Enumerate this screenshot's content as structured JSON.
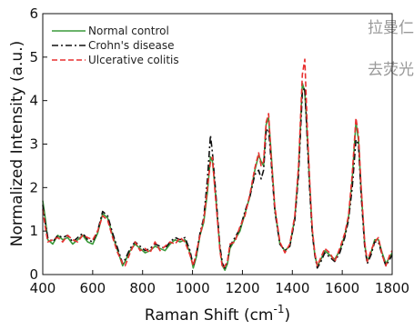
{
  "background_text": [
    "拉曼仁",
    "去荧光"
  ],
  "chart_data": {
    "type": "line",
    "xlabel": "Raman Shift (cm",
    "xlabel_superscript": "-1",
    "xlabel_suffix": ")",
    "ylabel": "Normalized Intensity (a.u.)",
    "xlim": [
      400,
      1800
    ],
    "ylim": [
      0,
      6
    ],
    "xticks": [
      400,
      600,
      800,
      1000,
      1200,
      1400,
      1600,
      1800
    ],
    "yticks": [
      0,
      1,
      2,
      3,
      4,
      5,
      6
    ],
    "grid": false,
    "legend_position": "top-left",
    "series": [
      {
        "name": "Normal control",
        "color": "#3a9a3a",
        "dash": "solid",
        "points": [
          [
            400,
            1.7
          ],
          [
            410,
            1.3
          ],
          [
            420,
            0.8
          ],
          [
            440,
            0.7
          ],
          [
            460,
            0.9
          ],
          [
            480,
            0.8
          ],
          [
            500,
            0.85
          ],
          [
            520,
            0.7
          ],
          [
            540,
            0.8
          ],
          [
            560,
            0.9
          ],
          [
            580,
            0.75
          ],
          [
            600,
            0.7
          ],
          [
            620,
            0.95
          ],
          [
            640,
            1.4
          ],
          [
            660,
            1.3
          ],
          [
            680,
            0.9
          ],
          [
            700,
            0.55
          ],
          [
            720,
            0.2
          ],
          [
            730,
            0.3
          ],
          [
            750,
            0.55
          ],
          [
            770,
            0.7
          ],
          [
            790,
            0.6
          ],
          [
            810,
            0.5
          ],
          [
            830,
            0.55
          ],
          [
            850,
            0.65
          ],
          [
            870,
            0.6
          ],
          [
            890,
            0.55
          ],
          [
            910,
            0.7
          ],
          [
            930,
            0.8
          ],
          [
            950,
            0.75
          ],
          [
            970,
            0.8
          ],
          [
            990,
            0.5
          ],
          [
            1003,
            0.15
          ],
          [
            1015,
            0.4
          ],
          [
            1030,
            0.9
          ],
          [
            1045,
            1.2
          ],
          [
            1060,
            1.9
          ],
          [
            1072,
            2.7
          ],
          [
            1080,
            2.6
          ],
          [
            1090,
            2.0
          ],
          [
            1100,
            1.3
          ],
          [
            1110,
            0.6
          ],
          [
            1120,
            0.2
          ],
          [
            1130,
            0.1
          ],
          [
            1140,
            0.25
          ],
          [
            1150,
            0.6
          ],
          [
            1170,
            0.8
          ],
          [
            1190,
            1.0
          ],
          [
            1210,
            1.4
          ],
          [
            1230,
            1.8
          ],
          [
            1250,
            2.4
          ],
          [
            1265,
            2.75
          ],
          [
            1275,
            2.6
          ],
          [
            1285,
            2.5
          ],
          [
            1295,
            3.45
          ],
          [
            1305,
            3.6
          ],
          [
            1315,
            2.8
          ],
          [
            1330,
            1.5
          ],
          [
            1350,
            0.7
          ],
          [
            1370,
            0.55
          ],
          [
            1390,
            0.65
          ],
          [
            1410,
            1.3
          ],
          [
            1425,
            2.4
          ],
          [
            1440,
            4.4
          ],
          [
            1450,
            4.2
          ],
          [
            1460,
            3.2
          ],
          [
            1470,
            2.0
          ],
          [
            1480,
            1.0
          ],
          [
            1490,
            0.45
          ],
          [
            1500,
            0.2
          ],
          [
            1515,
            0.35
          ],
          [
            1530,
            0.55
          ],
          [
            1550,
            0.45
          ],
          [
            1570,
            0.35
          ],
          [
            1590,
            0.55
          ],
          [
            1610,
            0.9
          ],
          [
            1625,
            1.3
          ],
          [
            1640,
            2.2
          ],
          [
            1655,
            3.5
          ],
          [
            1665,
            3.1
          ],
          [
            1675,
            2.0
          ],
          [
            1690,
            0.7
          ],
          [
            1700,
            0.3
          ],
          [
            1715,
            0.5
          ],
          [
            1730,
            0.8
          ],
          [
            1745,
            0.8
          ],
          [
            1760,
            0.5
          ],
          [
            1775,
            0.25
          ],
          [
            1790,
            0.4
          ],
          [
            1800,
            0.5
          ]
        ]
      },
      {
        "name": "Crohn's disease",
        "color": "#111111",
        "dash": "dashdot",
        "points": [
          [
            400,
            1.6
          ],
          [
            410,
            1.2
          ],
          [
            420,
            0.85
          ],
          [
            440,
            0.75
          ],
          [
            460,
            0.9
          ],
          [
            480,
            0.85
          ],
          [
            500,
            0.9
          ],
          [
            520,
            0.75
          ],
          [
            540,
            0.85
          ],
          [
            560,
            0.95
          ],
          [
            580,
            0.8
          ],
          [
            600,
            0.75
          ],
          [
            620,
            1.0
          ],
          [
            640,
            1.45
          ],
          [
            660,
            1.35
          ],
          [
            680,
            0.95
          ],
          [
            700,
            0.6
          ],
          [
            720,
            0.25
          ],
          [
            730,
            0.35
          ],
          [
            750,
            0.6
          ],
          [
            770,
            0.75
          ],
          [
            790,
            0.65
          ],
          [
            810,
            0.55
          ],
          [
            830,
            0.6
          ],
          [
            850,
            0.7
          ],
          [
            870,
            0.65
          ],
          [
            890,
            0.6
          ],
          [
            910,
            0.75
          ],
          [
            930,
            0.85
          ],
          [
            950,
            0.8
          ],
          [
            970,
            0.85
          ],
          [
            990,
            0.55
          ],
          [
            1003,
            0.2
          ],
          [
            1015,
            0.45
          ],
          [
            1030,
            0.95
          ],
          [
            1045,
            1.3
          ],
          [
            1060,
            2.2
          ],
          [
            1072,
            3.2
          ],
          [
            1080,
            2.8
          ],
          [
            1090,
            2.1
          ],
          [
            1100,
            1.35
          ],
          [
            1110,
            0.65
          ],
          [
            1120,
            0.25
          ],
          [
            1130,
            0.15
          ],
          [
            1140,
            0.3
          ],
          [
            1150,
            0.65
          ],
          [
            1170,
            0.85
          ],
          [
            1190,
            1.05
          ],
          [
            1210,
            1.45
          ],
          [
            1230,
            1.8
          ],
          [
            1250,
            2.3
          ],
          [
            1265,
            2.4
          ],
          [
            1275,
            2.2
          ],
          [
            1285,
            2.4
          ],
          [
            1295,
            3.3
          ],
          [
            1305,
            3.35
          ],
          [
            1315,
            2.6
          ],
          [
            1330,
            1.45
          ],
          [
            1350,
            0.7
          ],
          [
            1370,
            0.55
          ],
          [
            1390,
            0.65
          ],
          [
            1410,
            1.25
          ],
          [
            1425,
            2.3
          ],
          [
            1440,
            4.2
          ],
          [
            1450,
            4.3
          ],
          [
            1460,
            3.1
          ],
          [
            1470,
            1.9
          ],
          [
            1480,
            0.95
          ],
          [
            1490,
            0.45
          ],
          [
            1500,
            0.15
          ],
          [
            1515,
            0.3
          ],
          [
            1530,
            0.5
          ],
          [
            1550,
            0.4
          ],
          [
            1570,
            0.3
          ],
          [
            1590,
            0.5
          ],
          [
            1610,
            0.85
          ],
          [
            1625,
            1.25
          ],
          [
            1640,
            2.0
          ],
          [
            1655,
            3.1
          ],
          [
            1665,
            3.0
          ],
          [
            1675,
            1.9
          ],
          [
            1690,
            0.65
          ],
          [
            1700,
            0.25
          ],
          [
            1715,
            0.45
          ],
          [
            1730,
            0.75
          ],
          [
            1745,
            0.75
          ],
          [
            1760,
            0.45
          ],
          [
            1775,
            0.2
          ],
          [
            1790,
            0.35
          ],
          [
            1800,
            0.45
          ]
        ]
      },
      {
        "name": "Ulcerative colitis",
        "color": "#e83030",
        "dash": "dashed",
        "points": [
          [
            400,
            1.5
          ],
          [
            410,
            1.1
          ],
          [
            420,
            0.75
          ],
          [
            440,
            0.8
          ],
          [
            460,
            0.85
          ],
          [
            480,
            0.75
          ],
          [
            500,
            0.9
          ],
          [
            520,
            0.8
          ],
          [
            540,
            0.75
          ],
          [
            560,
            0.9
          ],
          [
            580,
            0.85
          ],
          [
            600,
            0.8
          ],
          [
            620,
            1.0
          ],
          [
            640,
            1.35
          ],
          [
            660,
            1.25
          ],
          [
            680,
            0.85
          ],
          [
            700,
            0.5
          ],
          [
            720,
            0.25
          ],
          [
            730,
            0.2
          ],
          [
            750,
            0.5
          ],
          [
            770,
            0.75
          ],
          [
            790,
            0.55
          ],
          [
            810,
            0.6
          ],
          [
            830,
            0.5
          ],
          [
            850,
            0.75
          ],
          [
            870,
            0.55
          ],
          [
            890,
            0.65
          ],
          [
            910,
            0.75
          ],
          [
            930,
            0.7
          ],
          [
            950,
            0.85
          ],
          [
            970,
            0.75
          ],
          [
            990,
            0.45
          ],
          [
            1003,
            0.2
          ],
          [
            1015,
            0.5
          ],
          [
            1030,
            0.9
          ],
          [
            1045,
            1.25
          ],
          [
            1060,
            2.0
          ],
          [
            1072,
            2.6
          ],
          [
            1080,
            2.7
          ],
          [
            1090,
            1.9
          ],
          [
            1100,
            1.25
          ],
          [
            1110,
            0.55
          ],
          [
            1120,
            0.15
          ],
          [
            1130,
            0.2
          ],
          [
            1140,
            0.3
          ],
          [
            1150,
            0.7
          ],
          [
            1170,
            0.75
          ],
          [
            1190,
            1.1
          ],
          [
            1210,
            1.35
          ],
          [
            1230,
            1.85
          ],
          [
            1250,
            2.45
          ],
          [
            1265,
            2.8
          ],
          [
            1275,
            2.5
          ],
          [
            1285,
            2.6
          ],
          [
            1295,
            3.5
          ],
          [
            1305,
            3.7
          ],
          [
            1315,
            2.7
          ],
          [
            1330,
            1.55
          ],
          [
            1350,
            0.75
          ],
          [
            1370,
            0.5
          ],
          [
            1390,
            0.7
          ],
          [
            1410,
            1.35
          ],
          [
            1425,
            2.5
          ],
          [
            1440,
            4.6
          ],
          [
            1450,
            4.95
          ],
          [
            1460,
            3.4
          ],
          [
            1470,
            2.1
          ],
          [
            1480,
            1.05
          ],
          [
            1490,
            0.5
          ],
          [
            1500,
            0.2
          ],
          [
            1515,
            0.4
          ],
          [
            1530,
            0.6
          ],
          [
            1550,
            0.5
          ],
          [
            1570,
            0.3
          ],
          [
            1590,
            0.6
          ],
          [
            1610,
            0.95
          ],
          [
            1625,
            1.35
          ],
          [
            1640,
            2.3
          ],
          [
            1655,
            3.6
          ],
          [
            1665,
            3.2
          ],
          [
            1675,
            2.1
          ],
          [
            1690,
            0.75
          ],
          [
            1700,
            0.3
          ],
          [
            1715,
            0.55
          ],
          [
            1730,
            0.75
          ],
          [
            1745,
            0.85
          ],
          [
            1760,
            0.45
          ],
          [
            1775,
            0.2
          ],
          [
            1790,
            0.45
          ],
          [
            1800,
            0.55
          ]
        ]
      }
    ]
  }
}
